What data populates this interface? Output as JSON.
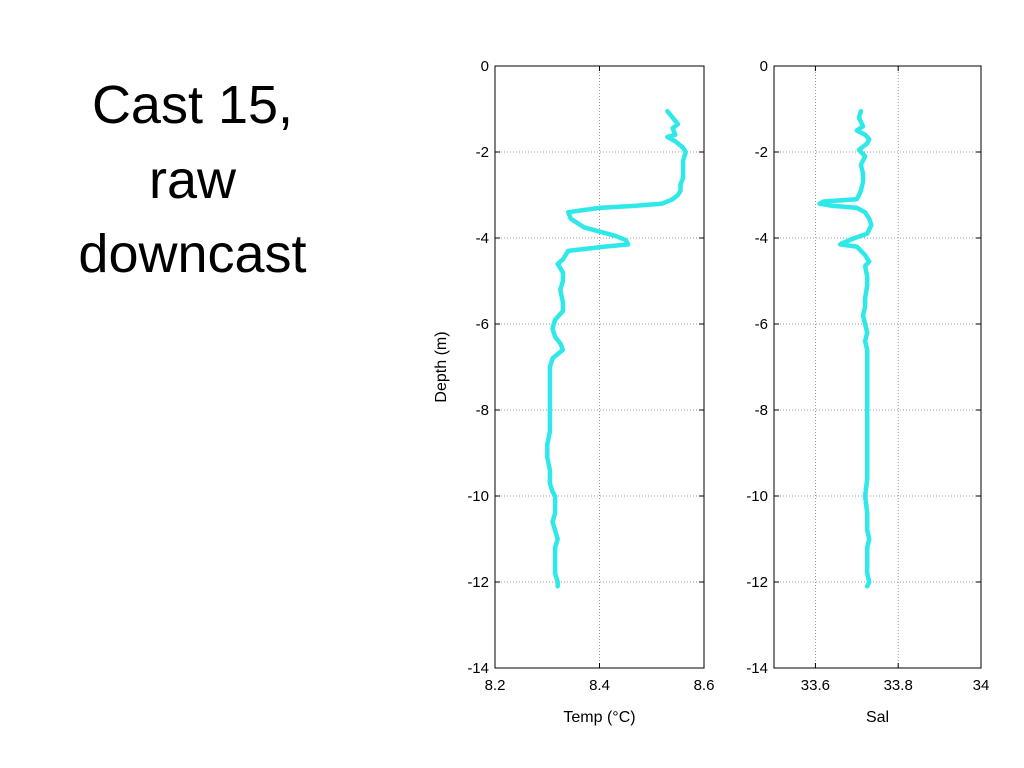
{
  "slide": {
    "title_lines": [
      "Cast 15,",
      "raw",
      "downcast"
    ]
  },
  "colors": {
    "trace": "#2ee8ea",
    "axis": "#000000",
    "grid": "#7f7f7f"
  },
  "chart_data": [
    {
      "type": "line",
      "xlabel": "Temp (°C)",
      "ylabel": "Depth (m)",
      "xlim": [
        8.2,
        8.6
      ],
      "ylim": [
        -14,
        0
      ],
      "xticks": [
        8.2,
        8.4,
        8.6
      ],
      "xtick_labels": [
        "8.2",
        "8.4",
        "8.6"
      ],
      "yticks": [
        0,
        -2,
        -4,
        -6,
        -8,
        -10,
        -12,
        -14
      ],
      "ytick_labels": [
        "0",
        "-2",
        "-4",
        "-6",
        "-8",
        "-10",
        "-12",
        "-14"
      ],
      "grid": true,
      "series": [
        {
          "x": [
            8.53,
            8.54,
            8.55,
            8.54,
            8.545,
            8.53,
            8.545,
            8.56,
            8.565,
            8.56,
            8.56,
            8.56,
            8.555,
            8.555,
            8.55,
            8.54,
            8.52,
            8.47,
            8.4,
            8.34,
            8.345,
            8.37,
            8.4,
            8.43,
            8.45,
            8.455,
            8.41,
            8.34,
            8.33,
            8.32,
            8.33,
            8.33,
            8.325,
            8.33,
            8.33,
            8.315,
            8.31,
            8.315,
            8.325,
            8.33,
            8.31,
            8.305,
            8.305,
            8.305,
            8.305,
            8.305,
            8.3,
            8.3,
            8.305,
            8.305,
            8.31,
            8.315,
            8.315,
            8.315,
            8.31,
            8.315,
            8.32,
            8.315,
            8.315,
            8.315,
            8.32,
            8.32
          ],
          "y": [
            -1.05,
            -1.2,
            -1.35,
            -1.45,
            -1.6,
            -1.65,
            -1.75,
            -1.9,
            -2.0,
            -2.2,
            -2.4,
            -2.6,
            -2.75,
            -2.9,
            -3.0,
            -3.1,
            -3.2,
            -3.25,
            -3.3,
            -3.4,
            -3.55,
            -3.75,
            -3.85,
            -3.95,
            -4.05,
            -4.15,
            -4.2,
            -4.3,
            -4.5,
            -4.6,
            -4.8,
            -5.0,
            -5.2,
            -5.5,
            -5.7,
            -5.9,
            -6.1,
            -6.3,
            -6.45,
            -6.6,
            -6.8,
            -7.0,
            -7.5,
            -7.9,
            -8.2,
            -8.5,
            -8.8,
            -9.1,
            -9.4,
            -9.7,
            -9.9,
            -10.0,
            -10.2,
            -10.4,
            -10.6,
            -10.8,
            -11.0,
            -11.2,
            -11.5,
            -11.8,
            -12.0,
            -12.1
          ]
        }
      ]
    },
    {
      "type": "line",
      "xlabel": "Sal",
      "ylabel": "",
      "xlim": [
        33.5,
        34
      ],
      "ylim": [
        -14,
        0
      ],
      "xticks": [
        33.6,
        33.8,
        34
      ],
      "xtick_labels": [
        "33.6",
        "33.8",
        "34"
      ],
      "yticks": [
        0,
        -2,
        -4,
        -6,
        -8,
        -10,
        -12,
        -14
      ],
      "ytick_labels": [
        "0",
        "-2",
        "-4",
        "-6",
        "-8",
        "-10",
        "-12",
        "-14"
      ],
      "grid": true,
      "series": [
        {
          "x": [
            33.71,
            33.705,
            33.715,
            33.7,
            33.72,
            33.73,
            33.725,
            33.705,
            33.72,
            33.71,
            33.715,
            33.715,
            33.71,
            33.705,
            33.7,
            33.62,
            33.61,
            33.64,
            33.7,
            33.72,
            33.73,
            33.735,
            33.725,
            33.695,
            33.67,
            33.66,
            33.7,
            33.72,
            33.73,
            33.72,
            33.725,
            33.725,
            33.72,
            33.72,
            33.715,
            33.72,
            33.725,
            33.72,
            33.725,
            33.725,
            33.725,
            33.725,
            33.725,
            33.725,
            33.725,
            33.725,
            33.725,
            33.72,
            33.725,
            33.725,
            33.73,
            33.725,
            33.725,
            33.725,
            33.73,
            33.725
          ],
          "y": [
            -1.05,
            -1.2,
            -1.4,
            -1.5,
            -1.6,
            -1.7,
            -1.8,
            -1.95,
            -2.1,
            -2.3,
            -2.5,
            -2.7,
            -2.9,
            -3.0,
            -3.1,
            -3.15,
            -3.2,
            -3.25,
            -3.3,
            -3.4,
            -3.55,
            -3.7,
            -3.9,
            -4.0,
            -4.1,
            -4.15,
            -4.2,
            -4.4,
            -4.55,
            -4.65,
            -4.9,
            -5.1,
            -5.4,
            -5.6,
            -5.8,
            -6.0,
            -6.2,
            -6.4,
            -6.6,
            -6.9,
            -7.2,
            -7.6,
            -8.0,
            -8.4,
            -8.8,
            -9.2,
            -9.6,
            -10.0,
            -10.4,
            -10.8,
            -11.0,
            -11.2,
            -11.5,
            -11.8,
            -12.0,
            -12.1
          ]
        }
      ]
    }
  ]
}
